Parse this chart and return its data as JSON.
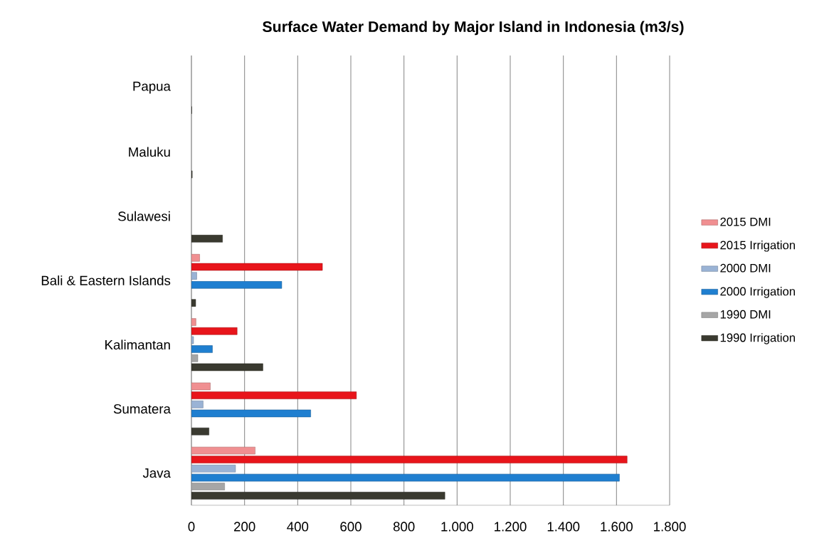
{
  "chart_data": {
    "type": "bar",
    "orientation": "horizontal",
    "title": "Surface Water Demand by Major Island in Indonesia  (m3/s)",
    "categories": [
      "Papua",
      "Maluku",
      "Sulawesi",
      "Bali & Eastern Islands",
      "Kalimantan",
      "Sumatera",
      "Java"
    ],
    "series": [
      {
        "name": "1990 Irrigation",
        "color": "#3a3a30",
        "values": [
          1,
          3,
          117,
          16,
          269,
          66,
          954
        ]
      },
      {
        "name": "1990 DMI",
        "color": "#a6a6a6",
        "values": [
          null,
          null,
          null,
          null,
          24,
          null,
          125
        ]
      },
      {
        "name": "2000 Irrigation",
        "color": "#1f7fd0",
        "values": [
          null,
          null,
          null,
          340,
          79,
          449,
          1611
        ]
      },
      {
        "name": "2000 DMI",
        "color": "#9ab3d5",
        "values": [
          null,
          null,
          null,
          20,
          8,
          44,
          166
        ]
      },
      {
        "name": "2015 Irrigation",
        "color": "#e8151b",
        "values": [
          null,
          null,
          null,
          493,
          172,
          621,
          1640
        ]
      },
      {
        "name": "2015 DMI",
        "color": "#f08f91",
        "values": [
          null,
          null,
          null,
          31,
          17,
          71,
          240
        ]
      }
    ],
    "xlim": [
      0,
      1800
    ],
    "xticks": [
      0,
      200,
      400,
      600,
      800,
      {
        "value": 1000,
        "label": "1.000"
      },
      {
        "value": 1200,
        "label": "1.200"
      },
      {
        "value": 1400,
        "label": "1.400"
      },
      {
        "value": 1600,
        "label": "1.600"
      },
      {
        "value": 1800,
        "label": "1.800"
      }
    ],
    "grid": "x",
    "legend": "right"
  }
}
